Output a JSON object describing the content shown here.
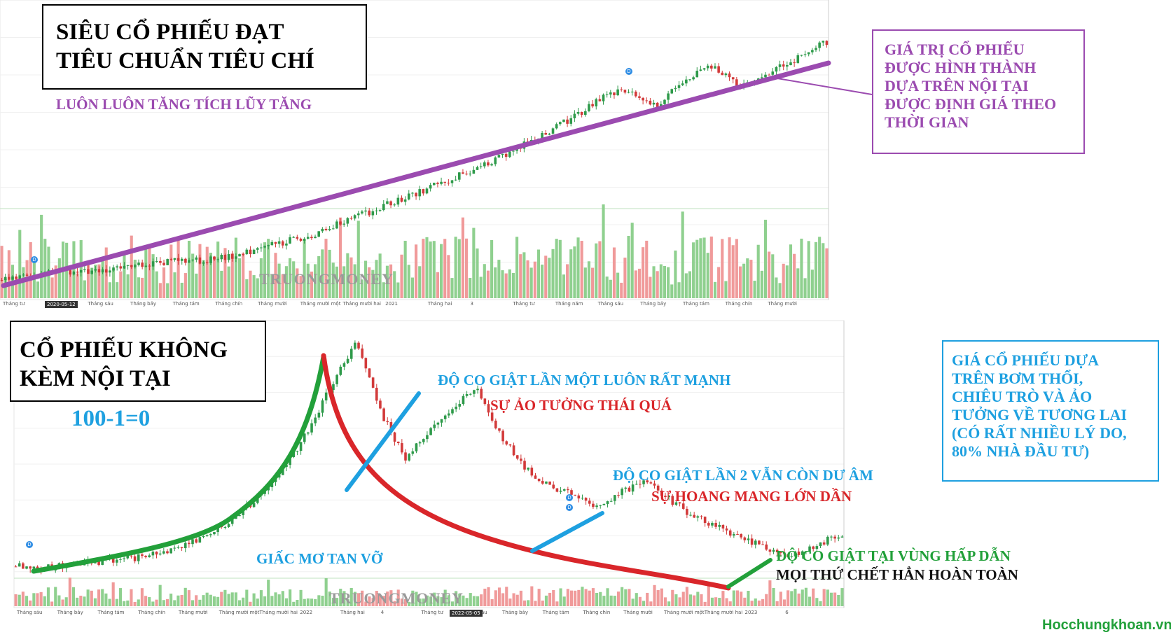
{
  "top_chart": {
    "title_line1": "SIÊU CỔ PHIẾU ĐẠT",
    "title_line2": "TIÊU CHUẨN TIÊU CHÍ",
    "subtitle": "LUÔN LUÔN TĂNG TÍCH LŨY TĂNG",
    "note_lines": [
      "GIÁ TRỊ CỔ PHIẾU",
      "ĐƯỢC HÌNH THÀNH",
      "DỰA TRÊN NỘI TẠI",
      "ĐƯỢC ĐỊNH GIÁ THEO",
      "THỜI GIAN"
    ],
    "watermark": "TRUONGMONEY",
    "date_badge": "2020-05-12",
    "x_ticks": [
      "Tháng tư",
      "Thá",
      "Tháng sáu",
      "Tháng bảy",
      "Tháng tám",
      "Tháng chín",
      "Tháng mười",
      "Tháng mười một",
      "Tháng mười hai",
      "2021",
      "Tháng hai",
      "3",
      "Tháng tư",
      "Tháng năm",
      "Tháng sáu",
      "Tháng bảy",
      "Tháng tám",
      "Tháng chín",
      "Tháng mười"
    ],
    "marker_label": "D"
  },
  "bottom_chart": {
    "title_line1": "CỔ PHIẾU KHÔNG",
    "title_line2": "KÈM NỘI TẠI",
    "formula": "100-1=0",
    "ann_bounce1": "ĐỘ CO GIẬT LẦN MỘT LUÔN RẤT MẠNH",
    "ann_illusion": "SỰ ẢO TƯỞNG THÁI QUÁ",
    "ann_bounce2": "ĐỘ CO GIẬT LẦN 2 VẪN CÒN DƯ ÂM",
    "ann_confusion": "SỰ HOANG MANG LỚN DẦN",
    "ann_dream": "GIẤC MƠ TAN VỠ",
    "ann_bounce3": "ĐỘ CO GIẬT TẠI VÙNG HẤP DẪN",
    "ann_dead": "MỌI THỨ CHẾT HẲN HOÀN TOÀN",
    "note_lines": [
      "GIÁ CỔ PHIẾU DỰA",
      "TRÊN BƠM THỔI,",
      "CHIÊU TRÒ VÀ ẢO",
      "TƯỞNG VỀ TƯƠNG LAI",
      "(CÓ RẤT NHIỀU LÝ DO,",
      "80% NHÀ ĐẦU TƯ)"
    ],
    "watermark": "TRUONGMONEY",
    "date_badge": "2022-05-05",
    "x_ticks": [
      "Tháng sáu",
      "Tháng bảy",
      "Tháng tám",
      "Tháng chín",
      "Tháng mười",
      "Tháng mười một",
      "Tháng mười hai",
      "2022",
      "Tháng hai",
      "4",
      "Tháng tư",
      "Tháng sáu",
      "Tháng bảy",
      "Tháng tám",
      "Tháng chín",
      "Tháng mười",
      "Tháng mười một",
      "Tháng mười hai",
      "2023",
      "6"
    ],
    "marker_label": "D"
  },
  "footer": {
    "site": "Hocchungkhoan.vn"
  },
  "colors": {
    "purple": "#9b4bb0",
    "blue": "#1ea0e0",
    "red": "#d9262a",
    "green": "#22a03a",
    "candle_up": "#2e9a4a",
    "candle_down": "#d23a3a",
    "vol_up": "#8fd08f",
    "vol_down": "#f09a9a"
  },
  "chart_data": [
    {
      "type": "line",
      "series": [
        {
          "values": [
            10,
            11,
            12,
            12,
            13,
            14,
            15,
            15,
            16,
            18,
            20,
            22,
            25,
            28,
            31,
            34,
            37,
            40,
            44,
            48,
            52,
            57,
            60,
            55,
            62,
            66,
            60,
            64,
            68,
            72
          ]
        }
      ]
    },
    {
      "type": "line",
      "series": [
        {
          "values": [
            12,
            11,
            12,
            13,
            14,
            15,
            17,
            20,
            24,
            30,
            38,
            48,
            62,
            80,
            96,
            70,
            52,
            62,
            72,
            78,
            60,
            48,
            42,
            38,
            34,
            40,
            44,
            36,
            30,
            26,
            22,
            18,
            16,
            20,
            24
          ]
        }
      ]
    }
  ]
}
